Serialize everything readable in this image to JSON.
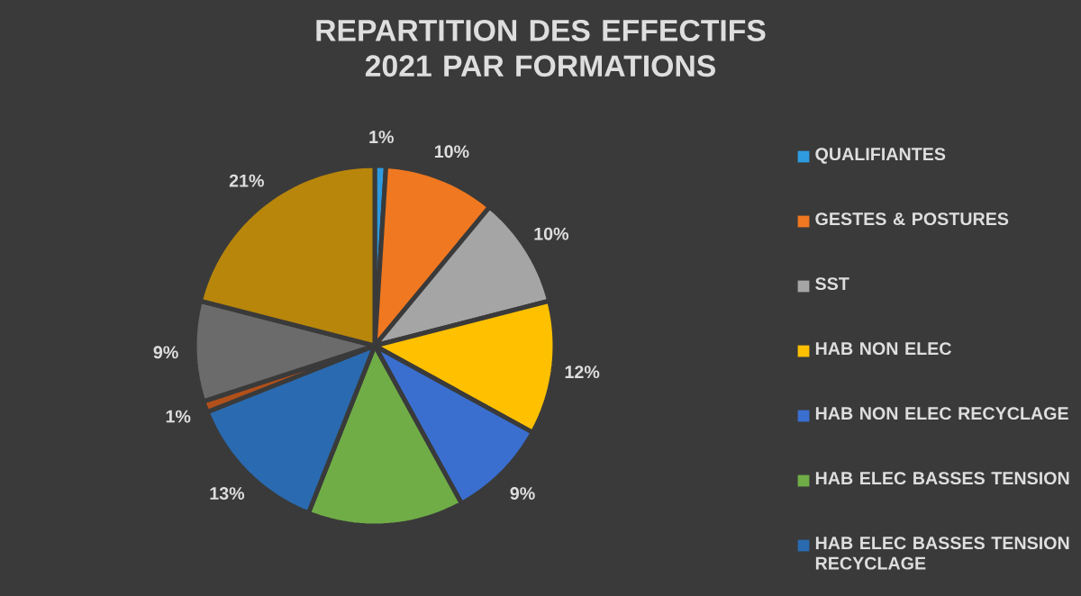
{
  "chart_data": {
    "type": "pie",
    "title": "REPARTITION DES EFFECTIFS 2021 PAR FORMATIONS",
    "categories": [
      "QUALIFIANTES",
      "GESTES & POSTURES",
      "SST",
      "HAB NON ELEC",
      "HAB NON ELEC RECYCLAGE",
      "HAB ELEC BASSES TENSION",
      "HAB ELEC BASSES TENSION RECYCLAGE",
      null,
      null,
      null
    ],
    "values": [
      1,
      10,
      10,
      12,
      9,
      14,
      13,
      1,
      9,
      21
    ],
    "value_labels": [
      "1%",
      "10%",
      "10%",
      "12%",
      "9%",
      null,
      "13%",
      "1%",
      "9%",
      "21%"
    ],
    "colors": [
      "#2e9be0",
      "#f07820",
      "#a5a5a5",
      "#ffc000",
      "#3a6fd0",
      "#70ad47",
      "#2a6ab0",
      "#b0501a",
      "#6b6b6b",
      "#b8860b"
    ],
    "legend": "right"
  }
}
